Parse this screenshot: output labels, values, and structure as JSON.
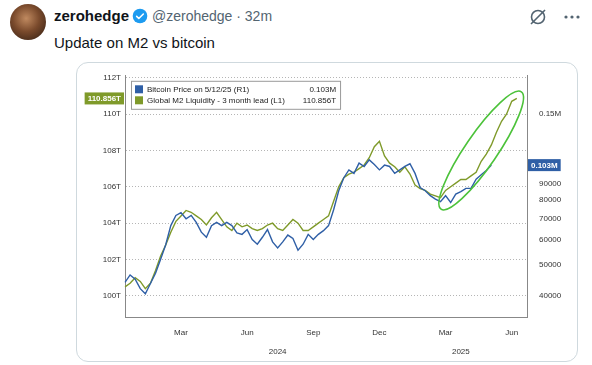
{
  "post": {
    "author": "zerohedge",
    "byline": "@zerohedge · 32m",
    "text": "Update on M2 vs bitcoin"
  },
  "chart_data": {
    "type": "line",
    "categories": [
      null,
      null,
      null,
      null,
      null,
      null,
      null,
      null,
      null,
      null,
      null,
      "Mar",
      null,
      null,
      null,
      null,
      null,
      null,
      null,
      null,
      null,
      null,
      null,
      null,
      "Jun",
      null,
      null,
      null,
      null,
      null,
      null,
      null,
      null,
      null,
      null,
      null,
      null,
      "Sep",
      null,
      null,
      null,
      null,
      null,
      null,
      null,
      null,
      null,
      null,
      null,
      null,
      "Dec",
      null,
      null,
      null,
      null,
      null,
      null,
      null,
      null,
      null,
      null,
      null,
      null,
      "Mar",
      null,
      null,
      null,
      null,
      null,
      null,
      null,
      null,
      null,
      null,
      null,
      null,
      "Jun",
      null,
      null,
      null
    ],
    "year_labels": [
      null,
      null,
      null,
      null,
      null,
      null,
      null,
      null,
      null,
      null,
      null,
      null,
      null,
      null,
      null,
      null,
      null,
      null,
      null,
      null,
      null,
      null,
      null,
      null,
      null,
      null,
      null,
      null,
      null,
      null,
      "2024",
      null,
      null,
      null,
      null,
      null,
      null,
      null,
      null,
      null,
      null,
      null,
      null,
      null,
      null,
      null,
      null,
      null,
      null,
      null,
      null,
      null,
      null,
      null,
      null,
      null,
      null,
      null,
      null,
      null,
      null,
      null,
      null,
      null,
      null,
      null,
      "2025",
      null,
      null,
      null,
      null,
      null,
      null,
      null,
      null,
      null,
      null,
      null,
      null,
      null
    ],
    "series": [
      {
        "name": "Bitcoin Price on 5/12/25 (R1)",
        "color": "#2f5fa6",
        "axis": "y2",
        "last_label": "0.103M",
        "values": [
          44000,
          46400,
          45000,
          42000,
          40500,
          43600,
          47000,
          52000,
          57800,
          66400,
          71500,
          73000,
          69800,
          71500,
          68000,
          63300,
          61000,
          66400,
          68000,
          66400,
          68000,
          66400,
          63000,
          62300,
          64500,
          60000,
          58000,
          61000,
          64500,
          59000,
          56500,
          59000,
          62000,
          60500,
          55500,
          58000,
          62300,
          60000,
          62300,
          64000,
          66400,
          74500,
          85500,
          94000,
          99500,
          97000,
          104500,
          102000,
          107000,
          103400,
          99500,
          103000,
          102000,
          97000,
          99500,
          102000,
          104000,
          97000,
          87500,
          85500,
          82500,
          80500,
          79000,
          82500,
          78500,
          83500,
          85000,
          87000,
          87000,
          93000,
          96000,
          99000,
          103000,
          null,
          null,
          null,
          null,
          null,
          null,
          null
        ]
      },
      {
        "name": "Global M2 Liquidity - 3 month lead (L1)",
        "color": "#7f9a2a",
        "last_label": "110.856T",
        "values": [
          100.5,
          100.7,
          101.0,
          100.8,
          100.4,
          100.7,
          101.4,
          102.2,
          102.8,
          103.5,
          104.1,
          104.4,
          104.7,
          104.6,
          104.4,
          104.2,
          103.9,
          104.3,
          104.6,
          104.2,
          103.8,
          103.6,
          104.0,
          103.8,
          103.9,
          103.7,
          103.6,
          103.7,
          103.9,
          104.0,
          103.7,
          103.6,
          103.9,
          104.2,
          104.0,
          103.6,
          103.6,
          103.8,
          104.0,
          104.2,
          104.4,
          105.2,
          106.0,
          106.5,
          106.7,
          106.8,
          107.0,
          107.2,
          107.6,
          108.2,
          108.5,
          107.7,
          107.3,
          107.1,
          106.8,
          107.1,
          106.7,
          106.1,
          105.9,
          105.8,
          105.6,
          105.5,
          105.4,
          105.8,
          106.0,
          106.2,
          106.4,
          106.4,
          106.6,
          106.8,
          107.4,
          107.8,
          108.3,
          109.0,
          109.6,
          110.0,
          110.7,
          110.856,
          null,
          null
        ]
      }
    ],
    "ylim": [
      98.8,
      112.1
    ],
    "yticks": [
      {
        "value": 100,
        "label": "100T"
      },
      {
        "value": 102,
        "label": "102T"
      },
      {
        "value": 104,
        "label": "104T"
      },
      {
        "value": 106,
        "label": "106T"
      },
      {
        "value": 108,
        "label": "108T"
      },
      {
        "value": 110,
        "label": "110T"
      },
      {
        "value": 112,
        "label": "112T"
      }
    ],
    "y2lim": [
      34000,
      197000
    ],
    "y2ticks": [
      40000,
      50000,
      60000,
      70000,
      80000,
      90000,
      {
        "value": 150000,
        "label": "0.15M"
      }
    ],
    "log": "y2",
    "grid": true,
    "legend": "upper left"
  }
}
